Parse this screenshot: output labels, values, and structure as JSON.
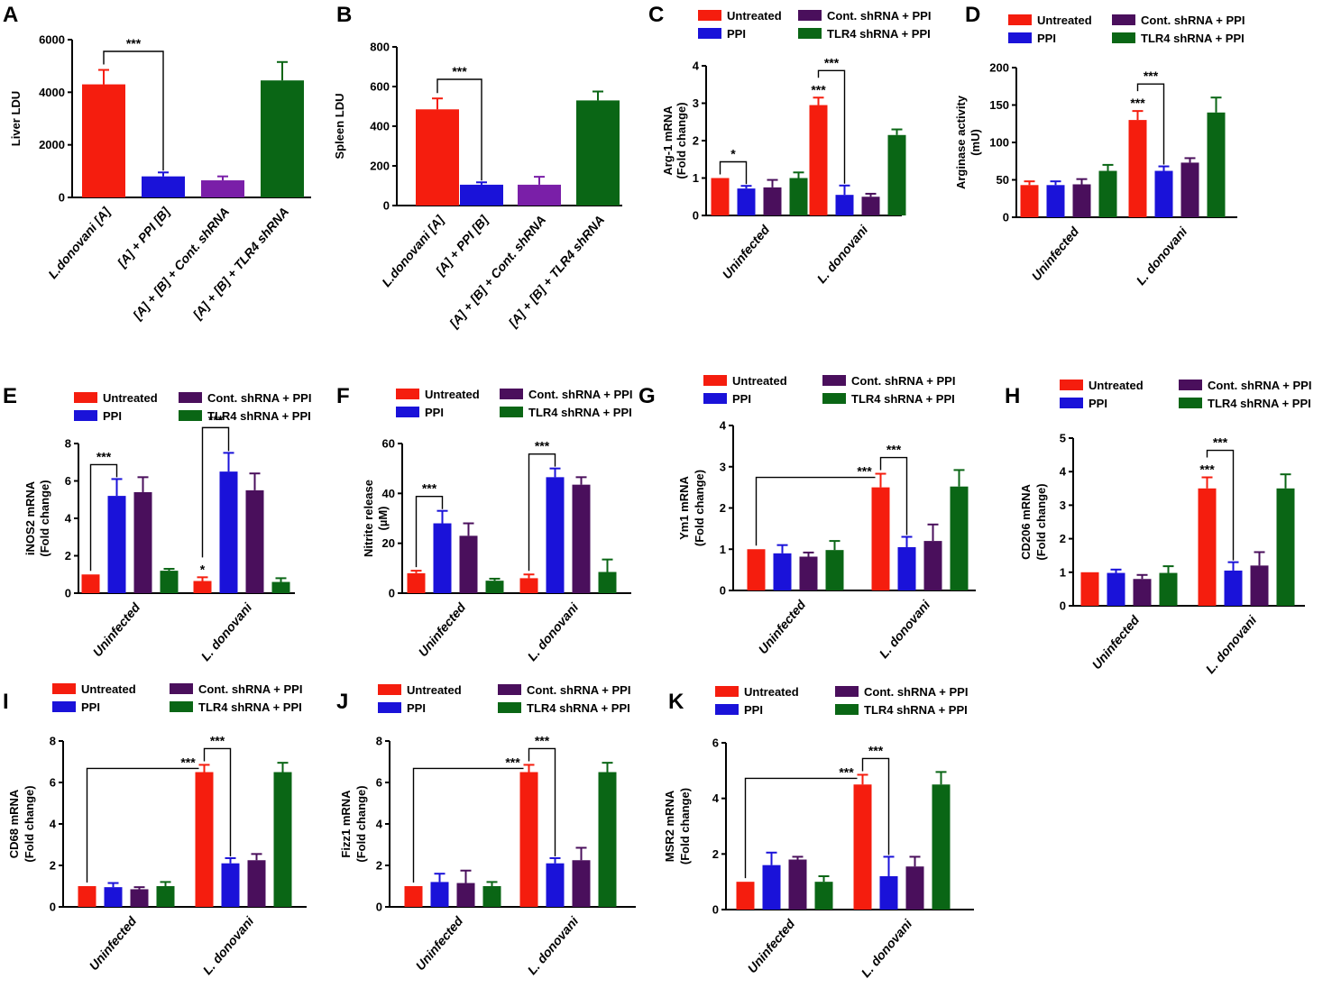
{
  "colors": {
    "Untreated": "#f51d0e",
    "PPI": "#1a12d9",
    "Cont. shRNA + PPI": "#4a0f5c",
    "TLR4 shRNA + PPI": "#0a6615",
    "purple_light": "#7a1fa8"
  },
  "chart_data": [
    {
      "id": "A",
      "panel": "A",
      "type": "bar",
      "ylabel": "Liver LDU",
      "yticks": [
        "0",
        "2000",
        "4000",
        "6000"
      ],
      "ylim": [
        0,
        6000
      ],
      "categories": [
        "L.donovani [A]",
        "[A] + PPI [B]",
        "[A] + [B] + Cont. shRNA",
        "[A] + [B] + TLR4 shRNA"
      ],
      "values": [
        4300,
        800,
        650,
        4450
      ],
      "errors": [
        550,
        150,
        150,
        700
      ],
      "bar_colors": [
        "#f51d0e",
        "#1a12d9",
        "#7a1fa8",
        "#0a6615"
      ],
      "significance": [
        {
          "from": 0,
          "to": 1,
          "label": "***"
        }
      ]
    },
    {
      "id": "B",
      "panel": "B",
      "type": "bar",
      "ylabel": "Spleen LDU",
      "yticks": [
        "0",
        "200",
        "400",
        "600",
        "800"
      ],
      "ylim": [
        0,
        800
      ],
      "categories": [
        "L.donovani [A]",
        "[A] + PPI [B]",
        "[A] + [B] + Cont. shRNA",
        "[A] + [B] + TLR4 shRNA"
      ],
      "values": [
        485,
        105,
        105,
        530
      ],
      "errors": [
        55,
        12,
        40,
        45
      ],
      "bar_colors": [
        "#f51d0e",
        "#1a12d9",
        "#7a1fa8",
        "#0a6615"
      ],
      "significance": [
        {
          "from": 0,
          "to": 1,
          "label": "***"
        }
      ]
    },
    {
      "id": "C",
      "panel": "C",
      "type": "bar",
      "ylabel": [
        "Arg-1 mRNA",
        "(Fold change)"
      ],
      "yticks": [
        "0",
        "1",
        "2",
        "3",
        "4"
      ],
      "ylim": [
        0,
        4
      ],
      "categories": [
        "Uninfected",
        "L. donovani"
      ],
      "series": [
        {
          "name": "Untreated",
          "values": [
            1.0,
            2.95
          ],
          "errors": [
            0.0,
            0.2
          ]
        },
        {
          "name": "PPI",
          "values": [
            0.72,
            0.55
          ],
          "errors": [
            0.07,
            0.25
          ]
        },
        {
          "name": "Cont. shRNA + PPI",
          "values": [
            0.75,
            0.5
          ],
          "errors": [
            0.2,
            0.08
          ]
        },
        {
          "name": "TLR4 shRNA + PPI",
          "values": [
            1.0,
            2.15
          ],
          "errors": [
            0.15,
            0.15
          ]
        }
      ],
      "significance": [
        {
          "group1": 0,
          "series1": 0,
          "group2": 0,
          "series2": 1,
          "label": "*"
        },
        {
          "group1": 1,
          "series1": 0,
          "group2": 1,
          "series2": 1,
          "label": "***"
        }
      ],
      "point_labels": [
        {
          "group": 1,
          "series": 0,
          "label": "***"
        }
      ]
    },
    {
      "id": "D",
      "panel": "D",
      "type": "bar",
      "ylabel": [
        "Arginase activity",
        "(mU)"
      ],
      "yticks": [
        "0",
        "50",
        "100",
        "150",
        "200"
      ],
      "ylim": [
        0,
        200
      ],
      "categories": [
        "Uninfected",
        "L. donovani"
      ],
      "series": [
        {
          "name": "Untreated",
          "values": [
            43,
            130
          ],
          "errors": [
            5,
            12
          ]
        },
        {
          "name": "PPI",
          "values": [
            43,
            62
          ],
          "errors": [
            5,
            6
          ]
        },
        {
          "name": "Cont. shRNA + PPI",
          "values": [
            44,
            73
          ],
          "errors": [
            7,
            6
          ]
        },
        {
          "name": "TLR4 shRNA + PPI",
          "values": [
            62,
            140
          ],
          "errors": [
            8,
            20
          ]
        }
      ],
      "significance": [
        {
          "group1": 1,
          "series1": 0,
          "group2": 1,
          "series2": 1,
          "label": "***"
        }
      ],
      "point_labels": [
        {
          "group": 1,
          "series": 0,
          "label": "***"
        }
      ]
    },
    {
      "id": "E",
      "panel": "E",
      "type": "bar",
      "ylabel": [
        "iNOS2 mRNA",
        "(Fold change)"
      ],
      "yticks": [
        "0",
        "2",
        "4",
        "6",
        "8"
      ],
      "ylim": [
        0,
        8
      ],
      "categories": [
        "Uninfected",
        "L. donovani"
      ],
      "series": [
        {
          "name": "Untreated",
          "values": [
            1.0,
            0.65
          ],
          "errors": [
            0.0,
            0.2
          ]
        },
        {
          "name": "PPI",
          "values": [
            5.2,
            6.5
          ],
          "errors": [
            0.9,
            1.0
          ]
        },
        {
          "name": "Cont. shRNA + PPI",
          "values": [
            5.4,
            5.5
          ],
          "errors": [
            0.8,
            0.9
          ]
        },
        {
          "name": "TLR4 shRNA + PPI",
          "values": [
            1.2,
            0.6
          ],
          "errors": [
            0.1,
            0.2
          ]
        }
      ],
      "significance": [
        {
          "group1": 0,
          "series1": 0,
          "group2": 0,
          "series2": 1,
          "label": "***"
        },
        {
          "group1": 1,
          "series1": 0,
          "group2": 1,
          "series2": 1,
          "label": "***"
        }
      ],
      "point_labels": [
        {
          "group": 1,
          "series": 0,
          "label": "*"
        }
      ]
    },
    {
      "id": "F",
      "panel": "F",
      "type": "bar",
      "ylabel": [
        "Nitrite release",
        "(µM)"
      ],
      "yticks": [
        "0",
        "20",
        "40",
        "60"
      ],
      "ylim": [
        0,
        60
      ],
      "categories": [
        "Uninfected",
        "L. donovani"
      ],
      "series": [
        {
          "name": "Untreated",
          "values": [
            8,
            6
          ],
          "errors": [
            1,
            1.5
          ]
        },
        {
          "name": "PPI",
          "values": [
            28,
            46.5
          ],
          "errors": [
            5,
            3.5
          ]
        },
        {
          "name": "Cont. shRNA + PPI",
          "values": [
            23,
            43.5
          ],
          "errors": [
            5,
            3
          ]
        },
        {
          "name": "TLR4 shRNA + PPI",
          "values": [
            5,
            8.5
          ],
          "errors": [
            0.8,
            5
          ]
        }
      ],
      "significance": [
        {
          "group1": 0,
          "series1": 0,
          "group2": 0,
          "series2": 1,
          "label": "***"
        },
        {
          "group1": 1,
          "series1": 0,
          "group2": 1,
          "series2": 1,
          "label": "***"
        }
      ],
      "point_labels": []
    },
    {
      "id": "G",
      "panel": "G",
      "type": "bar",
      "ylabel": [
        "Ym1 mRNA",
        "(Fold change)"
      ],
      "yticks": [
        "0",
        "1",
        "2",
        "3",
        "4"
      ],
      "ylim": [
        0,
        4
      ],
      "categories": [
        "Uninfected",
        "L. donovani"
      ],
      "series": [
        {
          "name": "Untreated",
          "values": [
            1.0,
            2.5
          ],
          "errors": [
            0.0,
            0.33
          ]
        },
        {
          "name": "PPI",
          "values": [
            0.9,
            1.05
          ],
          "errors": [
            0.2,
            0.25
          ]
        },
        {
          "name": "Cont. shRNA + PPI",
          "values": [
            0.82,
            1.2
          ],
          "errors": [
            0.1,
            0.4
          ]
        },
        {
          "name": "TLR4 shRNA + PPI",
          "values": [
            0.98,
            2.52
          ],
          "errors": [
            0.22,
            0.4
          ]
        }
      ],
      "significance": [
        {
          "group1": 0,
          "series1": 0,
          "group2": 1,
          "series2": 0,
          "label": "***"
        },
        {
          "group1": 1,
          "series1": 0,
          "group2": 1,
          "series2": 1,
          "label": "***"
        }
      ],
      "point_labels": []
    },
    {
      "id": "H",
      "panel": "H",
      "type": "bar",
      "ylabel": [
        "CD206 mRNA",
        "(Fold change)"
      ],
      "yticks": [
        "0",
        "1",
        "2",
        "3",
        "4",
        "5"
      ],
      "ylim": [
        0,
        5
      ],
      "categories": [
        "Uninfected",
        "L. donovani"
      ],
      "series": [
        {
          "name": "Untreated",
          "values": [
            1.0,
            3.5
          ],
          "errors": [
            0.0,
            0.33
          ]
        },
        {
          "name": "PPI",
          "values": [
            0.98,
            1.05
          ],
          "errors": [
            0.1,
            0.25
          ]
        },
        {
          "name": "Cont. shRNA + PPI",
          "values": [
            0.8,
            1.2
          ],
          "errors": [
            0.12,
            0.4
          ]
        },
        {
          "name": "TLR4 shRNA + PPI",
          "values": [
            0.98,
            3.5
          ],
          "errors": [
            0.2,
            0.42
          ]
        }
      ],
      "significance": [
        {
          "group1": 1,
          "series1": 0,
          "group2": 1,
          "series2": 1,
          "label": "***"
        }
      ],
      "point_labels": [
        {
          "group": 1,
          "series": 0,
          "label": "***"
        }
      ]
    },
    {
      "id": "I",
      "panel": "I",
      "type": "bar",
      "ylabel": [
        "CD68 mRNA",
        "(Fold change)"
      ],
      "yticks": [
        "0",
        "2",
        "4",
        "6",
        "8"
      ],
      "ylim": [
        0,
        8
      ],
      "categories": [
        "Uninfected",
        "L. donovani"
      ],
      "series": [
        {
          "name": "Untreated",
          "values": [
            1.0,
            6.5
          ],
          "errors": [
            0.0,
            0.35
          ]
        },
        {
          "name": "PPI",
          "values": [
            0.95,
            2.1
          ],
          "errors": [
            0.2,
            0.25
          ]
        },
        {
          "name": "Cont. shRNA + PPI",
          "values": [
            0.85,
            2.25
          ],
          "errors": [
            0.1,
            0.3
          ]
        },
        {
          "name": "TLR4 shRNA + PPI",
          "values": [
            1.0,
            6.5
          ],
          "errors": [
            0.2,
            0.45
          ]
        }
      ],
      "significance": [
        {
          "group1": 0,
          "series1": 0,
          "group2": 1,
          "series2": 0,
          "label": "***"
        },
        {
          "group1": 1,
          "series1": 0,
          "group2": 1,
          "series2": 1,
          "label": "***"
        }
      ],
      "point_labels": []
    },
    {
      "id": "J",
      "panel": "J",
      "type": "bar",
      "ylabel": [
        "Fizz1 mRNA",
        "(Fold change)"
      ],
      "yticks": [
        "0",
        "2",
        "4",
        "6",
        "8"
      ],
      "ylim": [
        0,
        8
      ],
      "categories": [
        "Uninfected",
        "L. donovani"
      ],
      "series": [
        {
          "name": "Untreated",
          "values": [
            1.0,
            6.5
          ],
          "errors": [
            0.0,
            0.35
          ]
        },
        {
          "name": "PPI",
          "values": [
            1.2,
            2.1
          ],
          "errors": [
            0.4,
            0.25
          ]
        },
        {
          "name": "Cont. shRNA + PPI",
          "values": [
            1.15,
            2.25
          ],
          "errors": [
            0.6,
            0.6
          ]
        },
        {
          "name": "TLR4 shRNA + PPI",
          "values": [
            1.0,
            6.5
          ],
          "errors": [
            0.2,
            0.45
          ]
        }
      ],
      "significance": [
        {
          "group1": 0,
          "series1": 0,
          "group2": 1,
          "series2": 0,
          "label": "***"
        },
        {
          "group1": 1,
          "series1": 0,
          "group2": 1,
          "series2": 1,
          "label": "***"
        }
      ],
      "point_labels": []
    },
    {
      "id": "K",
      "panel": "K",
      "type": "bar",
      "ylabel": [
        "MSR2 mRNA",
        "(Fold change)"
      ],
      "yticks": [
        "0",
        "2",
        "4",
        "6"
      ],
      "ylim": [
        0,
        6
      ],
      "categories": [
        "Uninfected",
        "L. donovani"
      ],
      "series": [
        {
          "name": "Untreated",
          "values": [
            1.0,
            4.5
          ],
          "errors": [
            0.0,
            0.35
          ]
        },
        {
          "name": "PPI",
          "values": [
            1.6,
            1.2
          ],
          "errors": [
            0.45,
            0.7
          ]
        },
        {
          "name": "Cont. shRNA + PPI",
          "values": [
            1.8,
            1.55
          ],
          "errors": [
            0.1,
            0.35
          ]
        },
        {
          "name": "TLR4 shRNA + PPI",
          "values": [
            1.0,
            4.5
          ],
          "errors": [
            0.2,
            0.45
          ]
        }
      ],
      "significance": [
        {
          "group1": 0,
          "series1": 0,
          "group2": 1,
          "series2": 0,
          "label": "***"
        },
        {
          "group1": 1,
          "series1": 0,
          "group2": 1,
          "series2": 1,
          "label": "***"
        }
      ],
      "point_labels": []
    }
  ]
}
